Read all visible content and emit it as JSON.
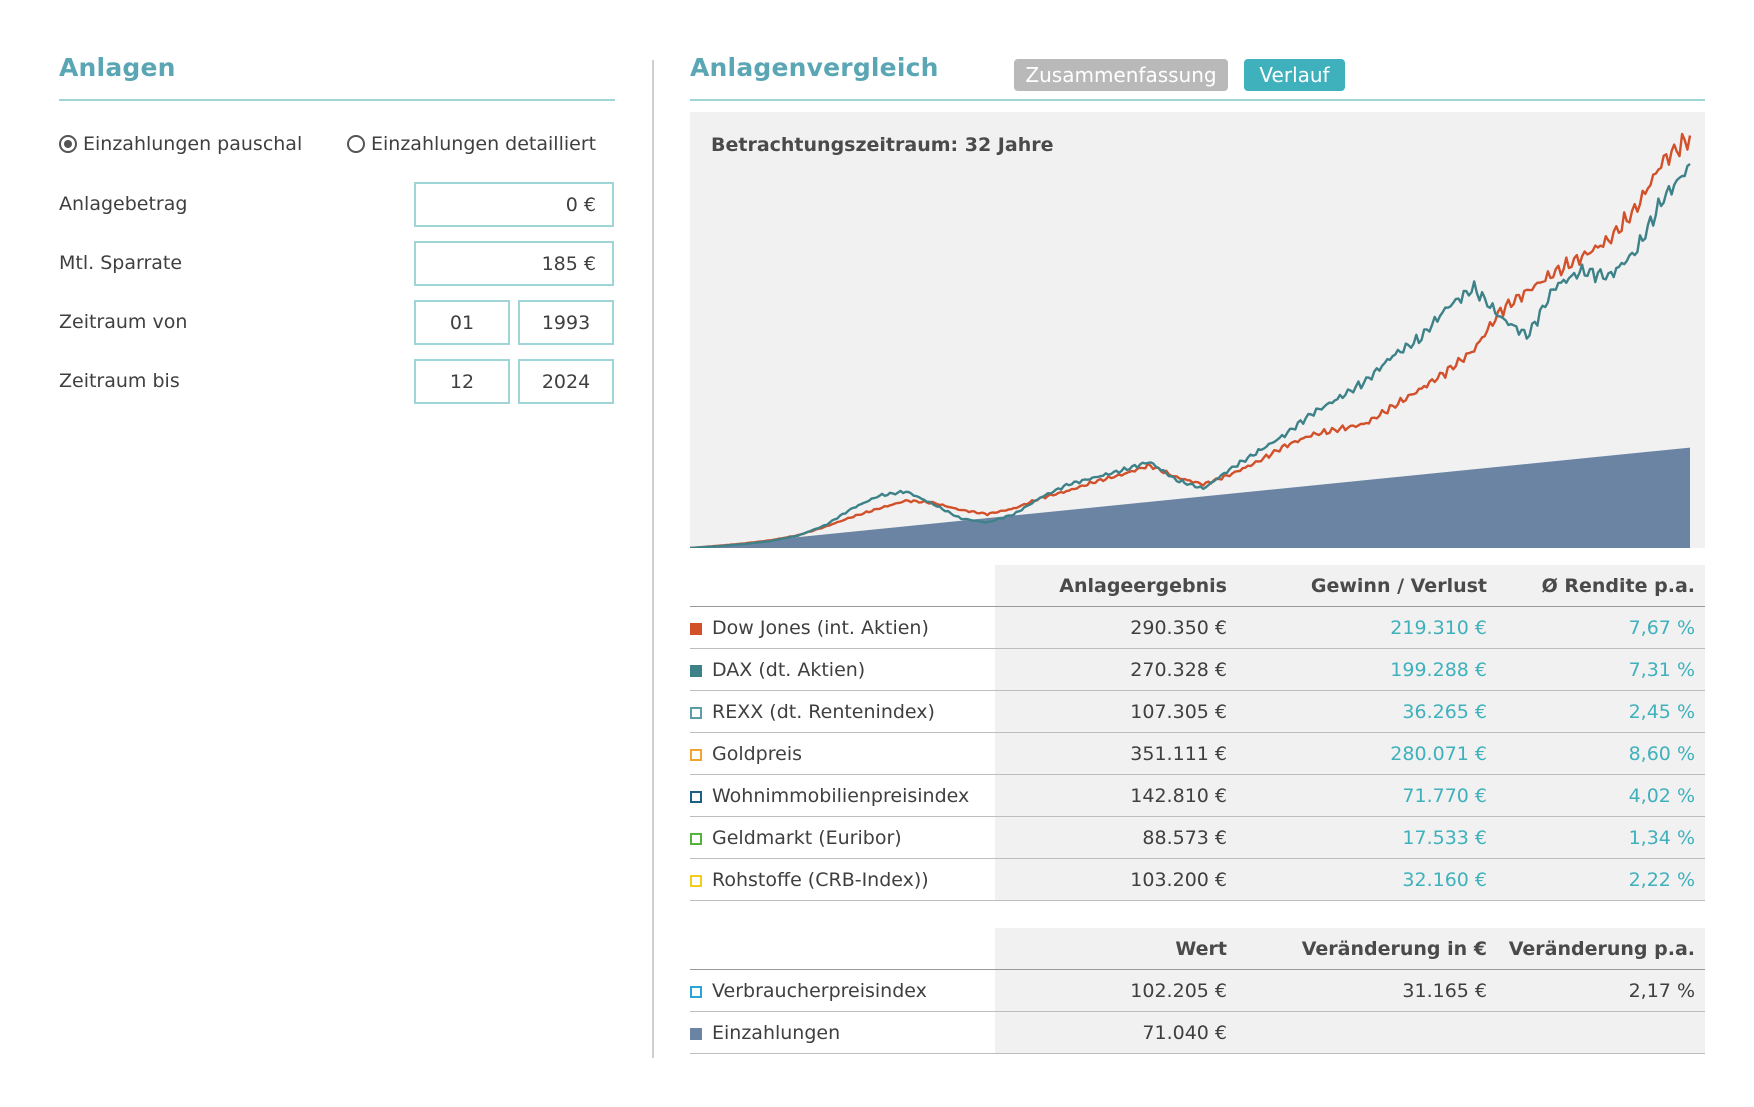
{
  "left": {
    "title": "Anlagen",
    "radio_pauschal": "Einzahlungen pauschal",
    "radio_detailliert": "Einzahlungen detailliert",
    "anlagebetrag_label": "Anlagebetrag",
    "anlagebetrag_value": "0 €",
    "sparrate_label": "Mtl. Sparrate",
    "sparrate_value": "185 €",
    "von_label": "Zeitraum von",
    "von_month": "01",
    "von_year": "1993",
    "bis_label": "Zeitraum bis",
    "bis_month": "12",
    "bis_year": "2024"
  },
  "right": {
    "title": "Anlagenvergleich",
    "tab_summary": "Zusammenfassung",
    "tab_verlauf": "Verlauf",
    "chart_caption": "Betrachtungszeitraum: 32 Jahre"
  },
  "colors": {
    "dow": "#d2502a",
    "dax": "#3e8289",
    "einzahlungen": "#6b84a4",
    "accent": "#3fb1bc"
  },
  "chart_data": {
    "type": "line",
    "x_start": "1993-01",
    "x_end": "2024-12",
    "series": [
      {
        "name": "Dow Jones (int. Aktien)",
        "color": "#d2502a",
        "values": [
          0,
          1500,
          3200,
          5500,
          9000,
          15000,
          22000,
          28000,
          33500,
          32000,
          27000,
          24000,
          28000,
          35500,
          40500,
          47000,
          52000,
          58500,
          50000,
          45000,
          52000,
          61000,
          72000,
          80000,
          84000,
          88000,
          100000,
          112000,
          125000,
          140000,
          168000,
          182000,
          195000,
          206000,
          218000,
          240000,
          274000,
          290350
        ]
      },
      {
        "name": "DAX (dt. Aktien)",
        "color": "#3e8289",
        "values": [
          0,
          1200,
          2800,
          5000,
          8800,
          16000,
          28000,
          37000,
          40000,
          31000,
          21000,
          18000,
          24000,
          36000,
          45000,
          50000,
          55000,
          61000,
          48000,
          42000,
          56000,
          68000,
          80000,
          95000,
          106000,
          118000,
          136000,
          148000,
          170000,
          184000,
          163000,
          150000,
          185000,
          196000,
          192000,
          210000,
          247000,
          270328
        ]
      },
      {
        "name": "Einzahlungen",
        "color": "#6b84a4",
        "type": "area",
        "values_start": 0,
        "values_end": 71040
      }
    ]
  },
  "table1": {
    "headers": [
      "",
      "Anlageergebnis",
      "Gewinn / Verlust",
      "Ø Rendite p.a."
    ],
    "rows": [
      {
        "name": "Dow Jones (int. Aktien)",
        "value": "290.350 €",
        "gain": "219.310 €",
        "rate": "7,67 %",
        "swatch": "#d2502a",
        "filled": true
      },
      {
        "name": "DAX (dt. Aktien)",
        "value": "270.328 €",
        "gain": "199.288 €",
        "rate": "7,31 %",
        "swatch": "#3e8289",
        "filled": true
      },
      {
        "name": "REXX (dt. Rentenindex)",
        "value": "107.305 €",
        "gain": "36.265 €",
        "rate": "2,45 %",
        "swatch": "#5b9ea8",
        "filled": false
      },
      {
        "name": "Goldpreis",
        "value": "351.111 €",
        "gain": "280.071 €",
        "rate": "8,60 %",
        "swatch": "#f0a431",
        "filled": false
      },
      {
        "name": "Wohnimmobilienpreisindex",
        "value": "142.810 €",
        "gain": "71.770 €",
        "rate": "4,02 %",
        "swatch": "#1f5f84",
        "filled": false
      },
      {
        "name": "Geldmarkt (Euribor)",
        "value": "88.573 €",
        "gain": "17.533 €",
        "rate": "1,34 %",
        "swatch": "#55b23a",
        "filled": false
      },
      {
        "name": "Rohstoffe (CRB-Index))",
        "value": "103.200 €",
        "gain": "32.160 €",
        "rate": "2,22 %",
        "swatch": "#f2cd1f",
        "filled": false
      }
    ]
  },
  "table2": {
    "headers": [
      "",
      "Wert",
      "Veränderung in €",
      "Veränderung p.a."
    ],
    "rows": [
      {
        "name": "Verbraucherpreisindex",
        "value": "102.205 €",
        "change": "31.165 €",
        "rate": "2,17 %",
        "swatch": "#29a6d6",
        "filled": false
      },
      {
        "name": "Einzahlungen",
        "value": "71.040 €",
        "change": "",
        "rate": "",
        "swatch": "#6b84a4",
        "filled": true
      }
    ]
  }
}
